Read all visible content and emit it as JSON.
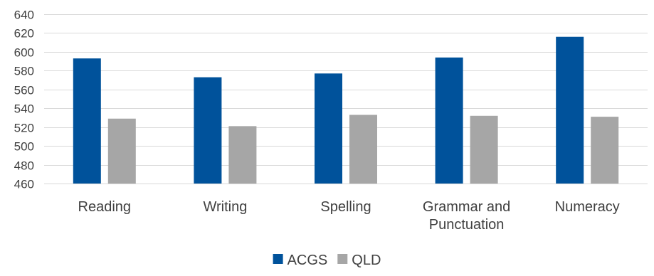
{
  "chart_data": {
    "type": "bar",
    "title": "",
    "xlabel": "",
    "ylabel": "",
    "categories": [
      "Reading",
      "Writing",
      "Spelling",
      "Grammar and Punctuation",
      "Numeracy"
    ],
    "category_lines": [
      [
        "Reading"
      ],
      [
        "Writing"
      ],
      [
        "Spelling"
      ],
      [
        "Grammar and",
        "Punctuation"
      ],
      [
        "Numeracy"
      ]
    ],
    "series": [
      {
        "name": "ACGS",
        "color": "#00529B",
        "values": [
          593,
          573,
          577,
          594,
          616
        ]
      },
      {
        "name": "QLD",
        "color": "#A6A6A6",
        "values": [
          529,
          521,
          533,
          532,
          531
        ]
      }
    ],
    "ylim": [
      460,
      640
    ],
    "ytick_step": 20,
    "grid": true,
    "legend_position": "bottom"
  }
}
